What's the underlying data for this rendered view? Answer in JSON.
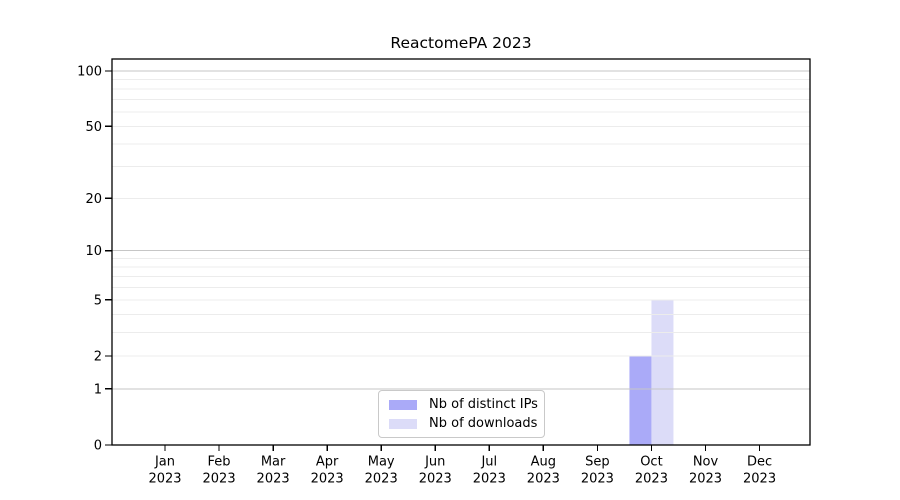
{
  "chart_data": {
    "type": "bar",
    "title": "ReactomePA 2023",
    "x_categories": [
      {
        "month": "Jan",
        "year": "2023"
      },
      {
        "month": "Feb",
        "year": "2023"
      },
      {
        "month": "Mar",
        "year": "2023"
      },
      {
        "month": "Apr",
        "year": "2023"
      },
      {
        "month": "May",
        "year": "2023"
      },
      {
        "month": "Jun",
        "year": "2023"
      },
      {
        "month": "Jul",
        "year": "2023"
      },
      {
        "month": "Aug",
        "year": "2023"
      },
      {
        "month": "Sep",
        "year": "2023"
      },
      {
        "month": "Oct",
        "year": "2023"
      },
      {
        "month": "Nov",
        "year": "2023"
      },
      {
        "month": "Dec",
        "year": "2023"
      }
    ],
    "series": [
      {
        "name": "Nb of distinct IPs",
        "color": "#aaaaf8",
        "values": [
          0,
          0,
          0,
          0,
          0,
          0,
          0,
          0,
          0,
          2,
          0,
          0
        ]
      },
      {
        "name": "Nb of downloads",
        "color": "#dcdcf8",
        "values": [
          0,
          0,
          0,
          0,
          0,
          0,
          0,
          0,
          0,
          5,
          0,
          0
        ]
      }
    ],
    "y_axis": {
      "scale": "log1p",
      "ticks": [
        0,
        1,
        2,
        5,
        10,
        20,
        50,
        100
      ],
      "limits": [
        0,
        100
      ],
      "grid_major": [
        1,
        10,
        100
      ],
      "grid_minor": [
        2,
        3,
        4,
        5,
        6,
        7,
        8,
        9,
        20,
        30,
        40,
        50,
        60,
        70,
        80,
        90
      ]
    },
    "legend": {
      "position": "bottom-center-inside"
    },
    "colors": {
      "axis": "#000000",
      "text": "#000000",
      "grid_major": "#c6c6c6",
      "grid_minor": "#ececec",
      "background": "#ffffff"
    },
    "grid": "horizontal-on"
  }
}
